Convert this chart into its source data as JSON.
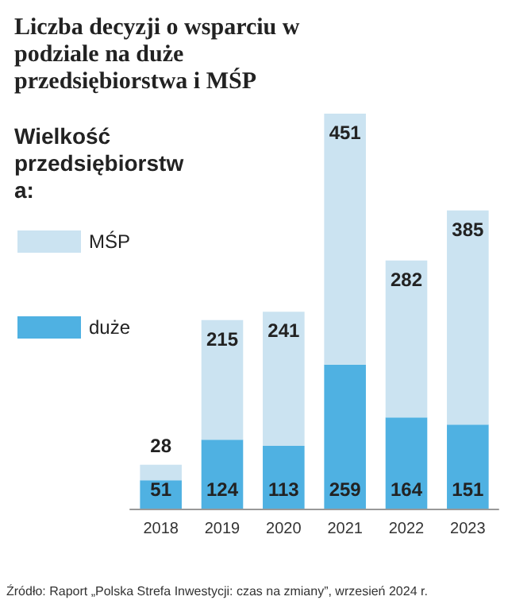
{
  "chart_data": {
    "type": "bar",
    "title": "Liczba decyzji o wsparciu w podziale na duże przedsiębiorstwa i MŚP",
    "legend_title": "Wielkość przedsiębiorstwa:",
    "categories": [
      "2018",
      "2019",
      "2020",
      "2021",
      "2022",
      "2023"
    ],
    "series": [
      {
        "name": "duże",
        "color": "#4fb1e2",
        "values": [
          51,
          124,
          113,
          259,
          164,
          151
        ]
      },
      {
        "name": "MŚP",
        "color": "#cbe3f1",
        "values": [
          28,
          215,
          241,
          451,
          282,
          385
        ]
      }
    ],
    "stacked": true,
    "data_labels": true,
    "legend": "left",
    "annotations": [
      "Źródło: Raport „Polska Strefa Inwestycji: czas na zmiany”, wrzesień 2024 r."
    ]
  }
}
